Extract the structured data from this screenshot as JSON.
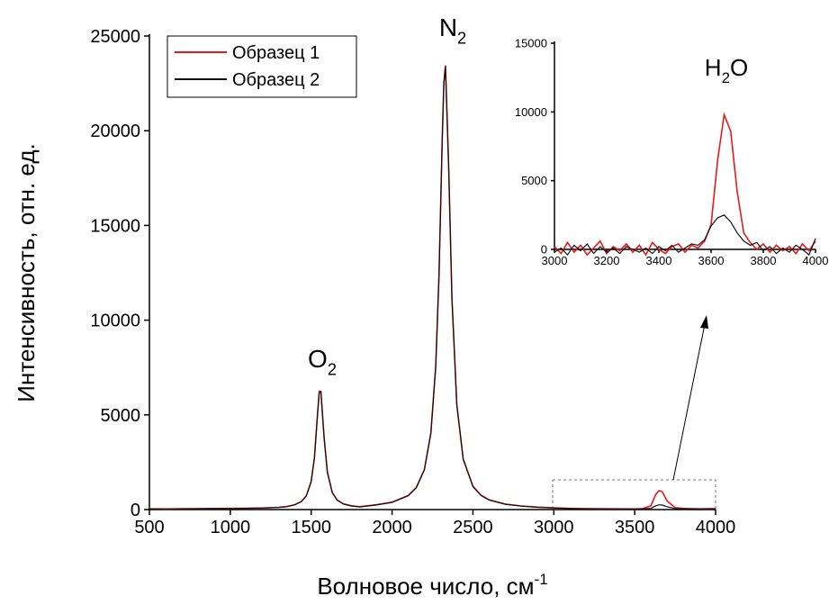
{
  "chart_data": [
    {
      "type": "line",
      "x_label": {
        "text": "Волновое число, см",
        "sup": "-1"
      },
      "y_label": "Интенсивность, отн. ед.",
      "annotations": [
        {
          "text": "O",
          "sub": "2"
        },
        {
          "text": "N",
          "sub": "2"
        }
      ],
      "legend": "top-left",
      "x": [
        500,
        600,
        700,
        800,
        900,
        1000,
        1100,
        1200,
        1300,
        1350,
        1400,
        1440,
        1470,
        1500,
        1520,
        1540,
        1550,
        1560,
        1580,
        1600,
        1630,
        1660,
        1700,
        1750,
        1800,
        1900,
        2000,
        2100,
        2150,
        2200,
        2240,
        2270,
        2290,
        2310,
        2320,
        2330,
        2350,
        2370,
        2400,
        2440,
        2500,
        2550,
        2600,
        2700,
        2800,
        2900,
        3000,
        3100,
        3200,
        3300,
        3400,
        3500,
        3550,
        3600,
        3630,
        3650,
        3670,
        3700,
        3750,
        3800,
        3900,
        4000
      ],
      "series": [
        {
          "name": "Образец 1",
          "color": "#e8191b",
          "values": [
            40,
            35,
            45,
            50,
            55,
            60,
            70,
            80,
            120,
            160,
            260,
            430,
            730,
            1490,
            2730,
            5140,
            6250,
            6240,
            3800,
            1990,
            910,
            510,
            300,
            200,
            150,
            250,
            390,
            740,
            1170,
            2120,
            4050,
            7580,
            12330,
            19530,
            22530,
            23450,
            18030,
            11170,
            5550,
            2680,
            1230,
            760,
            520,
            290,
            190,
            130,
            90,
            60,
            50,
            45,
            40,
            35,
            50,
            200,
            800,
            1000,
            950,
            450,
            100,
            60,
            40,
            50
          ]
        },
        {
          "name": "Образец 2",
          "color": "#111111",
          "values": [
            30,
            40,
            40,
            45,
            50,
            55,
            65,
            85,
            115,
            150,
            250,
            420,
            720,
            1470,
            2700,
            5100,
            6200,
            6220,
            3770,
            1960,
            900,
            500,
            290,
            190,
            140,
            240,
            380,
            730,
            1150,
            2100,
            4020,
            7550,
            12300,
            19500,
            22500,
            23400,
            18000,
            11140,
            5520,
            2650,
            1210,
            740,
            500,
            280,
            180,
            120,
            80,
            50,
            40,
            40,
            35,
            30,
            35,
            60,
            200,
            250,
            240,
            150,
            50,
            40,
            35,
            40
          ]
        }
      ],
      "xlim": [
        500,
        4000
      ],
      "ylim": [
        0,
        25000
      ],
      "xticks": [
        500,
        1000,
        1500,
        2000,
        2500,
        3000,
        3500,
        4000
      ],
      "yticks": [
        0,
        5000,
        10000,
        15000,
        20000,
        25000
      ]
    },
    {
      "type": "line",
      "annotations": [
        {
          "text": "H",
          "sub": "2",
          "after": "O"
        }
      ],
      "x": [
        3000,
        3025,
        3050,
        3075,
        3100,
        3125,
        3150,
        3175,
        3200,
        3225,
        3250,
        3275,
        3300,
        3325,
        3350,
        3375,
        3400,
        3425,
        3450,
        3475,
        3500,
        3525,
        3550,
        3575,
        3600,
        3625,
        3650,
        3675,
        3700,
        3725,
        3750,
        3775,
        3800,
        3825,
        3850,
        3875,
        3900,
        3925,
        3950,
        3975,
        4000
      ],
      "series": [
        {
          "color": "#e8191b",
          "values": [
            200,
            -300,
            500,
            -200,
            300,
            -400,
            100,
            600,
            -300,
            200,
            -100,
            400,
            -200,
            300,
            -400,
            500,
            0,
            -300,
            200,
            400,
            -200,
            300,
            100,
            600,
            1800,
            6500,
            9800,
            8600,
            4200,
            1200,
            500,
            0,
            400,
            -200,
            300,
            -100,
            200,
            -300,
            400,
            -100,
            600
          ]
        },
        {
          "color": "#111111",
          "values": [
            -200,
            100,
            -400,
            300,
            -100,
            400,
            -300,
            200,
            -200,
            100,
            -300,
            200,
            0,
            -200,
            100,
            -300,
            200,
            -100,
            300,
            -200,
            100,
            400,
            300,
            700,
            1700,
            2300,
            2500,
            2000,
            1200,
            600,
            300,
            500,
            -100,
            200,
            -300,
            100,
            -200,
            300,
            0,
            -400,
            800
          ]
        }
      ],
      "xlim": [
        3000,
        4000
      ],
      "ylim": [
        0,
        15000
      ],
      "xticks": [
        3000,
        3200,
        3400,
        3600,
        3800,
        4000
      ],
      "yticks": [
        0,
        5000,
        10000,
        15000
      ]
    }
  ]
}
